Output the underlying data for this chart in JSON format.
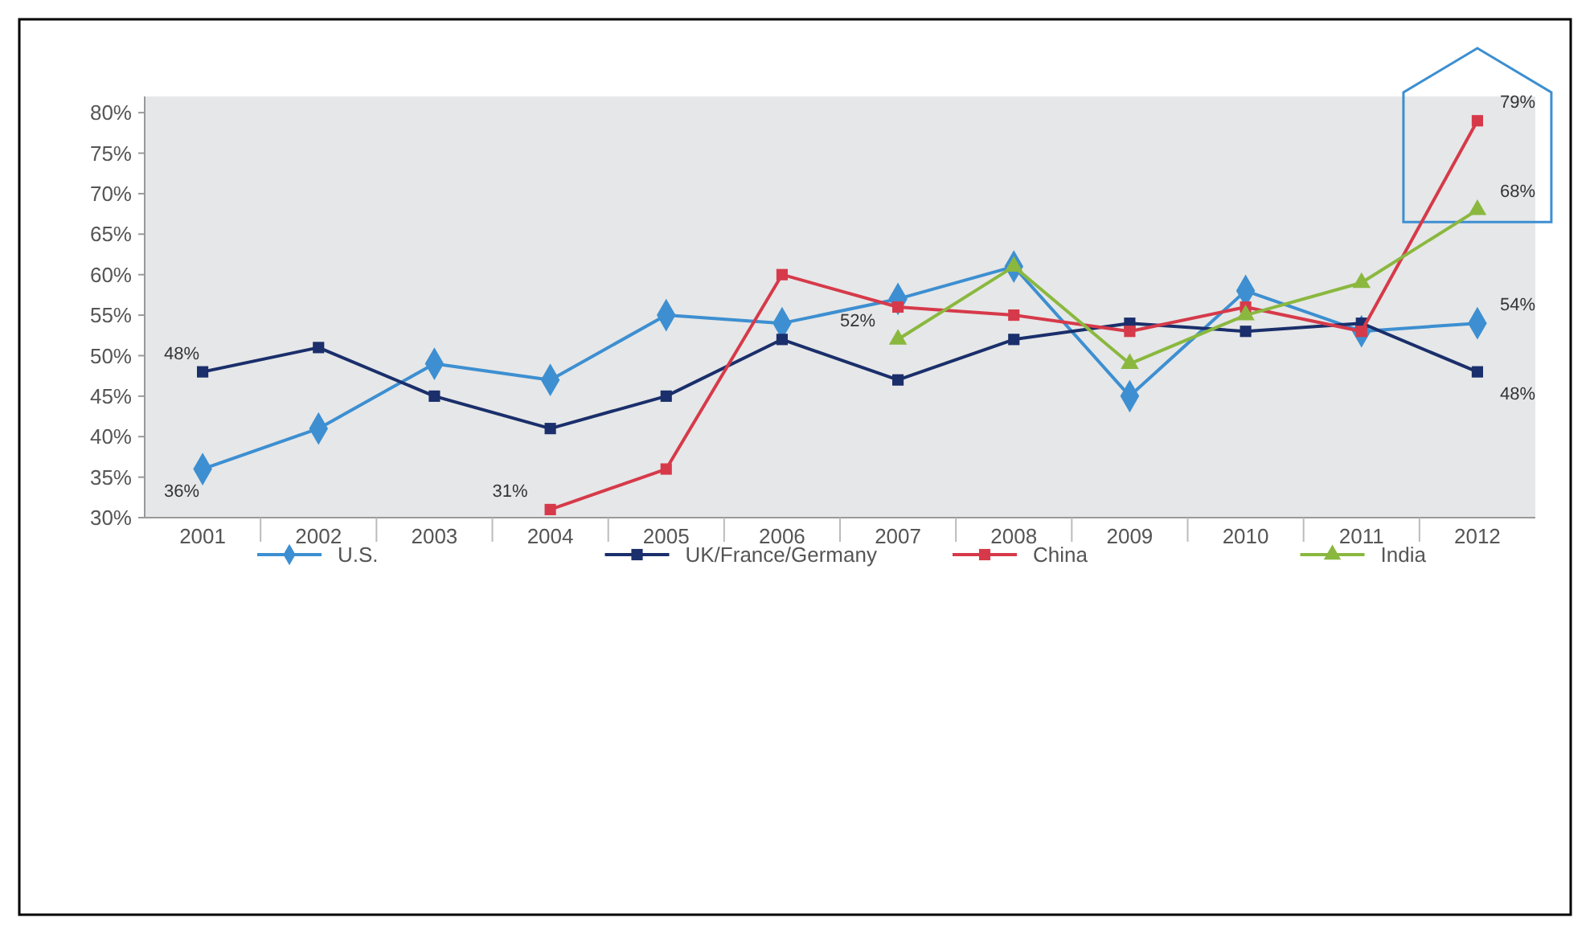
{
  "chart_data": {
    "type": "line",
    "categories": [
      "2001",
      "2002",
      "2003",
      "2004",
      "2005",
      "2006",
      "2007",
      "2008",
      "2009",
      "2010",
      "2011",
      "2012"
    ],
    "ylim": [
      30,
      82
    ],
    "yticks": [
      {
        "value": 30,
        "label": "30%"
      },
      {
        "value": 35,
        "label": "35%"
      },
      {
        "value": 40,
        "label": "40%"
      },
      {
        "value": 45,
        "label": "45%"
      },
      {
        "value": 50,
        "label": "50%"
      },
      {
        "value": 55,
        "label": "55%"
      },
      {
        "value": 60,
        "label": "60%"
      },
      {
        "value": 65,
        "label": "65%"
      },
      {
        "value": 70,
        "label": "70%"
      },
      {
        "value": 75,
        "label": "75%"
      },
      {
        "value": 80,
        "label": "80%"
      }
    ],
    "grid": false,
    "legend": "bottom",
    "line_style": "solid",
    "series": [
      {
        "name": "U.S.",
        "color": "#3d8fd1",
        "marker": "diamond",
        "values": [
          36,
          41,
          49,
          47,
          55,
          54,
          57,
          61,
          45,
          58,
          53,
          54
        ],
        "value_labels": [
          "36%",
          null,
          null,
          null,
          null,
          null,
          null,
          null,
          null,
          null,
          null,
          "54%"
        ]
      },
      {
        "name": "UK/France/Germany",
        "color": "#1a2f6b",
        "marker": "square",
        "values": [
          48,
          51,
          45,
          41,
          45,
          52,
          47,
          52,
          54,
          53,
          54,
          48
        ],
        "value_labels": [
          "48%",
          null,
          null,
          null,
          null,
          null,
          null,
          null,
          null,
          null,
          null,
          "48%"
        ]
      },
      {
        "name": "China",
        "color": "#d63a4a",
        "marker": "square",
        "values": [
          null,
          null,
          null,
          31,
          36,
          60,
          56,
          55,
          53,
          56,
          53,
          79
        ],
        "value_labels": [
          null,
          null,
          null,
          "31%",
          null,
          null,
          null,
          null,
          null,
          null,
          null,
          "79%"
        ]
      },
      {
        "name": "India",
        "color": "#8ab83f",
        "marker": "triangle",
        "values": [
          null,
          null,
          null,
          null,
          null,
          null,
          52,
          61,
          49,
          55,
          59,
          68
        ],
        "value_labels": [
          null,
          null,
          null,
          null,
          null,
          null,
          "52%",
          null,
          null,
          null,
          null,
          "68%"
        ]
      }
    ]
  }
}
